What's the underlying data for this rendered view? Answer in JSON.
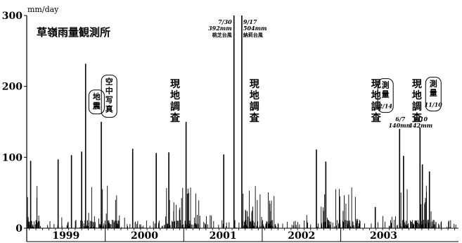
{
  "chart_data": {
    "type": "bar",
    "title": "草嶺雨量観測所",
    "ylabel": "mm/day",
    "ylim": [
      0,
      300
    ],
    "yticks": [
      "0",
      "100",
      "200",
      "300"
    ],
    "xrange": [
      1998.55,
      2004.05
    ],
    "years": [
      {
        "label": "1999",
        "from": 1998.55,
        "to": 1999.55
      },
      {
        "label": "2000",
        "from": 1999.55,
        "to": 2000.55
      },
      {
        "label": "2001",
        "from": 2000.55,
        "to": 2001.55
      },
      {
        "label": "2002",
        "from": 2001.55,
        "to": 2002.55
      },
      {
        "label": "2003",
        "from": 2002.55,
        "to": 2004.05
      }
    ],
    "peaks": [
      {
        "x": 1998.6,
        "value": 95
      },
      {
        "x": 1998.95,
        "value": 97
      },
      {
        "x": 1999.12,
        "value": 103
      },
      {
        "x": 1999.25,
        "value": 108
      },
      {
        "x": 1999.3,
        "value": 232
      },
      {
        "x": 1999.5,
        "value": 150
      },
      {
        "x": 1999.9,
        "value": 112
      },
      {
        "x": 2000.2,
        "value": 106
      },
      {
        "x": 2000.36,
        "value": 107
      },
      {
        "x": 2000.58,
        "value": 150
      },
      {
        "x": 2001.06,
        "value": 104
      },
      {
        "x": 2001.19,
        "value": 300
      },
      {
        "x": 2001.29,
        "value": 300
      },
      {
        "x": 2002.24,
        "value": 111
      },
      {
        "x": 2002.36,
        "value": 94
      },
      {
        "x": 2002.99,
        "value": 30
      },
      {
        "x": 2003.3,
        "value": 140
      },
      {
        "x": 2003.35,
        "value": 102
      },
      {
        "x": 2003.56,
        "value": 142
      },
      {
        "x": 2003.59,
        "value": 90
      },
      {
        "x": 2003.68,
        "value": 80
      }
    ],
    "annotations": [
      {
        "text": "現地調査",
        "x": 2000.44
      },
      {
        "text": "現地調査",
        "x": 2001.45
      },
      {
        "text": "現地調査",
        "x": 2003.0
      },
      {
        "text": "現地調査",
        "x": 2003.52
      }
    ],
    "boxed_notes": [
      {
        "lines": [
          "空中写真"
        ],
        "x": 1999.6,
        "y": 208
      },
      {
        "lines": [
          "地震"
        ],
        "x": 1999.44,
        "y": 187
      },
      {
        "lines": [
          "測量",
          "2/14"
        ],
        "x": 2003.12,
        "y": 203
      },
      {
        "lines": [
          "測量",
          "11/10"
        ],
        "x": 2003.73,
        "y": 205
      }
    ],
    "typhoons": [
      {
        "date": "7/30",
        "amount": "392mm",
        "name": "桃芝台風",
        "x": 2001.19
      },
      {
        "date": "9/17",
        "amount": "504mm",
        "name": "納莉台風",
        "x": 2001.29
      }
    ],
    "peak_labels": [
      {
        "date": "6/7",
        "amount": "140mm",
        "x": 2003.3
      },
      {
        "date": "9/10",
        "amount": "142mm",
        "x": 2003.56
      }
    ]
  }
}
